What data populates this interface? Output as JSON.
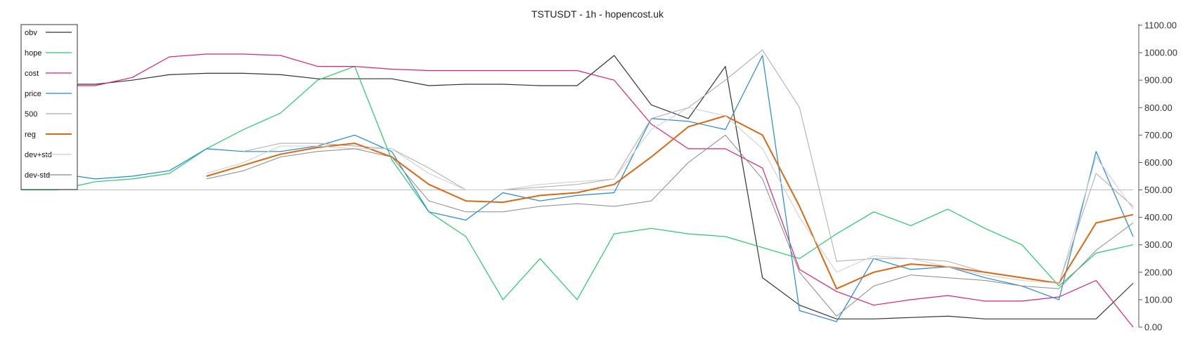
{
  "chart_data": {
    "type": "line",
    "title": "TSTUSDT - 1h - hopencost.uk",
    "xlabel": "",
    "ylabel": "",
    "ylim": [
      0,
      1100
    ],
    "y_ticks": [
      "0.00",
      "100.00",
      "200.00",
      "300.00",
      "400.00",
      "500.00",
      "600.00",
      "700.00",
      "800.00",
      "900.00",
      "1000.00",
      "1100.00"
    ],
    "y_axis_position": "right",
    "reference_line": 500,
    "grid": false,
    "legend_position": "top-left",
    "x": [
      0,
      10,
      20,
      30,
      40,
      50,
      60,
      70,
      80,
      90,
      100,
      110,
      120,
      130,
      140,
      150,
      160,
      170,
      180,
      190,
      200,
      210,
      220,
      230,
      240,
      250,
      260,
      270,
      280,
      290,
      300
    ],
    "series": [
      {
        "name": "obv",
        "color": "#333333",
        "width": 1.2,
        "values": [
          895,
          885,
          885,
          900,
          920,
          925,
          925,
          920,
          905,
          905,
          905,
          880,
          885,
          885,
          880,
          880,
          990,
          810,
          760,
          950,
          180,
          80,
          30,
          30,
          35,
          40,
          30,
          30,
          30,
          30,
          160
        ]
      },
      {
        "name": "hope",
        "color": "#22cc66",
        "width": 1.2,
        "values": [
          500,
          500,
          530,
          540,
          560,
          650,
          720,
          780,
          900,
          950,
          610,
          420,
          330,
          100,
          250,
          100,
          340,
          360,
          340,
          330,
          290,
          250,
          340,
          420,
          370,
          430,
          360,
          300,
          150,
          270,
          300
        ]
      },
      {
        "name": "cost",
        "color": "#dd2277",
        "width": 1.2,
        "values": [
          895,
          880,
          880,
          910,
          985,
          995,
          995,
          990,
          950,
          950,
          940,
          935,
          935,
          935,
          935,
          935,
          900,
          740,
          650,
          650,
          580,
          210,
          130,
          80,
          100,
          115,
          95,
          95,
          110,
          170,
          0
        ]
      },
      {
        "name": "price",
        "color": "#2288dd",
        "width": 1.2,
        "values": [
          540,
          560,
          540,
          550,
          570,
          650,
          640,
          640,
          660,
          700,
          640,
          420,
          390,
          490,
          460,
          480,
          490,
          760,
          750,
          720,
          990,
          60,
          20,
          250,
          210,
          220,
          180,
          150,
          100,
          640,
          330
        ]
      },
      {
        "name": "500",
        "color": "#aaaaaa",
        "width": 1.0,
        "values": [
          null,
          null,
          null,
          null,
          null,
          null,
          640,
          670,
          670,
          660,
          650,
          580,
          500,
          500,
          510,
          520,
          540,
          760,
          800,
          900,
          1010,
          800,
          240,
          250,
          250,
          240,
          200,
          180,
          160,
          560,
          440
        ]
      },
      {
        "name": "reg",
        "color": "#dd6611",
        "width": 2.0,
        "values": [
          null,
          null,
          null,
          null,
          null,
          550,
          590,
          630,
          655,
          670,
          620,
          520,
          460,
          455,
          480,
          490,
          520,
          620,
          730,
          770,
          700,
          440,
          140,
          200,
          230,
          220,
          200,
          180,
          160,
          380,
          410
        ]
      },
      {
        "name": "dev+std",
        "color": "#cccccc",
        "width": 1.0,
        "values": [
          null,
          null,
          null,
          null,
          null,
          560,
          600,
          660,
          660,
          650,
          650,
          560,
          500,
          500,
          520,
          530,
          540,
          720,
          800,
          770,
          650,
          400,
          200,
          260,
          250,
          220,
          190,
          170,
          160,
          620,
          430
        ]
      },
      {
        "name": "dev-std",
        "color": "#888888",
        "width": 1.0,
        "values": [
          null,
          null,
          null,
          null,
          null,
          540,
          570,
          620,
          640,
          650,
          620,
          460,
          420,
          420,
          440,
          450,
          440,
          460,
          600,
          700,
          540,
          200,
          40,
          150,
          190,
          180,
          170,
          150,
          140,
          280,
          380
        ]
      }
    ]
  }
}
